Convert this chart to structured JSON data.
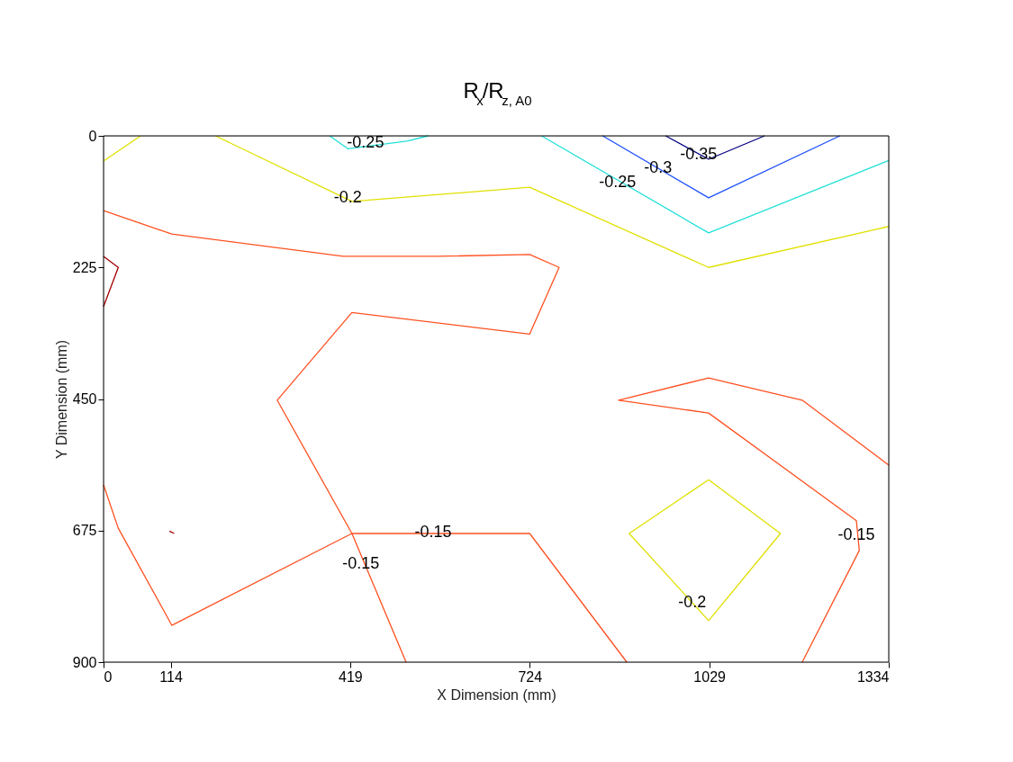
{
  "chart_data": {
    "type": "line",
    "title": "R$_{x}$/R$_{z, A0}$",
    "xlabel": "X Dimension (mm)",
    "ylabel": "Y Dimension (mm)",
    "xlim": [
      0,
      1334
    ],
    "xticks": [
      0,
      114,
      419,
      724,
      1029,
      1334
    ],
    "ylim": [
      900,
      0
    ],
    "yticks": [
      0,
      225,
      450,
      675,
      900
    ],
    "grid": false,
    "legend": false,
    "marker": "none",
    "line_style": "solid",
    "series": [
      {
        "color": "#e0e000",
        "x": [
          0,
          63
        ],
        "values": [
          43,
          0
        ]
      },
      {
        "color": "#e0e000",
        "x": [
          190,
          422,
          724,
          1028,
          1334
        ],
        "values": [
          0,
          112,
          88,
          225,
          155
        ]
      },
      {
        "color": "#20e0d8",
        "x": [
          384,
          415,
          515,
          552
        ],
        "values": [
          0,
          22,
          9,
          0
        ]
      },
      {
        "color": "#20e0d8",
        "x": [
          744,
          1028,
          1334
        ],
        "values": [
          0,
          166,
          42
        ]
      },
      {
        "color": "#1e50ff",
        "x": [
          848,
          1028,
          1251
        ],
        "values": [
          0,
          106,
          0
        ]
      },
      {
        "color": "#000080",
        "x": [
          955,
          1028,
          1123
        ],
        "values": [
          0,
          40,
          0
        ]
      },
      {
        "color": "#ff5020",
        "x": [
          0,
          116,
          407,
          568,
          724,
          774,
          724,
          422,
          295,
          422,
          724,
          889
        ],
        "values": [
          128,
          168,
          206,
          206,
          203,
          225,
          339,
          302,
          452,
          680,
          680,
          900
        ]
      },
      {
        "color": "#ff5020",
        "x": [
          0,
          25,
          116,
          422,
          514
        ],
        "values": [
          597,
          671,
          837,
          680,
          900
        ]
      },
      {
        "color": "#ff5020",
        "x": [
          1334,
          1187,
          1028,
          875,
          1028,
          1279,
          1284,
          1187
        ],
        "values": [
          563,
          452,
          414,
          452,
          474,
          658,
          709,
          900
        ]
      },
      {
        "color": "#a00000",
        "x": [
          0,
          25,
          0
        ],
        "values": [
          206,
          225,
          292
        ]
      },
      {
        "color": "#a00000",
        "x": [
          112,
          120
        ],
        "values": [
          676,
          680
        ]
      },
      {
        "color": "#e0e000",
        "x": [
          1028,
          893,
          1028
        ],
        "values": [
          588,
          680,
          829
        ]
      },
      {
        "color": "#e0e000",
        "x": [
          1028,
          1150,
          1028
        ],
        "values": [
          588,
          680,
          829
        ]
      }
    ],
    "annotations": [
      {
        "text": "-0.25",
        "x": 445,
        "y": 12
      },
      {
        "text": "-0.2",
        "x": 415,
        "y": 106
      },
      {
        "text": "-0.25",
        "x": 873,
        "y": 80
      },
      {
        "text": "-0.3",
        "x": 942,
        "y": 55
      },
      {
        "text": "-0.35",
        "x": 1011,
        "y": 32
      },
      {
        "text": "-0.15",
        "x": 560,
        "y": 678
      },
      {
        "text": "-0.15",
        "x": 437,
        "y": 732
      },
      {
        "text": "-0.15",
        "x": 1279,
        "y": 683
      },
      {
        "text": "-0.2",
        "x": 1000,
        "y": 798
      }
    ]
  }
}
